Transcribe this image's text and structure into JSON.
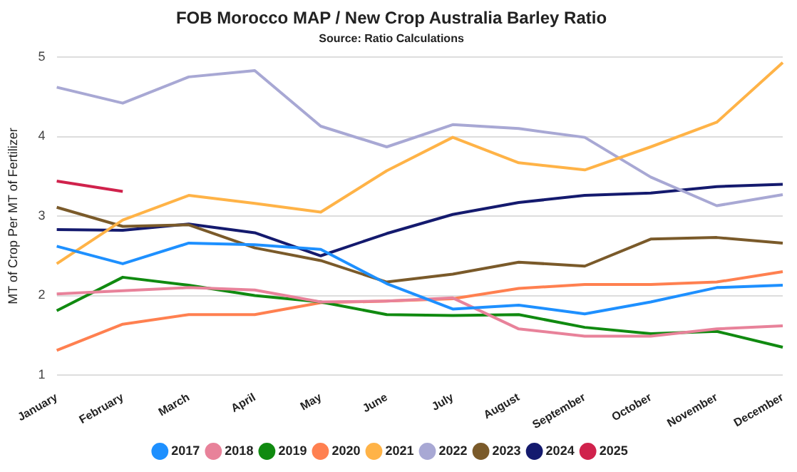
{
  "chart_data": {
    "type": "line",
    "title": "FOB Morocco MAP / New Crop Australia Barley Ratio",
    "subtitle": "Source: Ratio Calculations",
    "ylabel": "MT of Crop Per MT of Fertilizer",
    "categories": [
      "January",
      "February",
      "March",
      "April",
      "May",
      "June",
      "July",
      "August",
      "September",
      "October",
      "November",
      "December"
    ],
    "ylim": [
      1,
      5
    ],
    "yticks": [
      1,
      2,
      3,
      4,
      5
    ],
    "grid": "y",
    "legend": "bottom",
    "marker": "none",
    "line_style": "solid",
    "series": [
      {
        "name": "2017",
        "color": "#1e90ff",
        "values": [
          2.62,
          2.4,
          2.66,
          2.64,
          2.58,
          2.15,
          1.83,
          1.88,
          1.77,
          1.92,
          2.1,
          2.13
        ]
      },
      {
        "name": "2018",
        "color": "#e8829a",
        "values": [
          2.02,
          2.06,
          2.1,
          2.07,
          1.92,
          1.93,
          1.97,
          1.58,
          1.49,
          1.49,
          1.58,
          1.62
        ]
      },
      {
        "name": "2019",
        "color": "#108a10",
        "values": [
          1.81,
          2.23,
          2.13,
          2.0,
          1.92,
          1.76,
          1.75,
          1.76,
          1.6,
          1.52,
          1.55,
          1.35
        ]
      },
      {
        "name": "2020",
        "color": "#ff8050",
        "values": [
          1.31,
          1.64,
          1.76,
          1.76,
          1.91,
          1.93,
          1.96,
          2.09,
          2.14,
          2.14,
          2.17,
          2.3
        ]
      },
      {
        "name": "2021",
        "color": "#ffb347",
        "values": [
          2.4,
          2.95,
          3.26,
          3.16,
          3.05,
          3.57,
          3.99,
          3.67,
          3.58,
          3.87,
          4.18,
          4.93
        ]
      },
      {
        "name": "2022",
        "color": "#a8a8d4",
        "values": [
          4.62,
          4.42,
          4.75,
          4.83,
          4.13,
          3.87,
          4.15,
          4.1,
          3.99,
          3.49,
          3.13,
          3.27
        ]
      },
      {
        "name": "2023",
        "color": "#7a5a2a",
        "values": [
          3.11,
          2.87,
          2.89,
          2.6,
          2.44,
          2.17,
          2.27,
          2.42,
          2.37,
          2.71,
          2.73,
          2.66
        ]
      },
      {
        "name": "2024",
        "color": "#141a6e",
        "values": [
          2.83,
          2.82,
          2.9,
          2.79,
          2.5,
          2.78,
          3.02,
          3.17,
          3.26,
          3.29,
          3.37,
          3.4
        ]
      },
      {
        "name": "2025",
        "color": "#d0224c",
        "values": [
          3.44,
          3.31,
          null,
          null,
          null,
          null,
          null,
          null,
          null,
          null,
          null,
          null
        ]
      }
    ]
  }
}
